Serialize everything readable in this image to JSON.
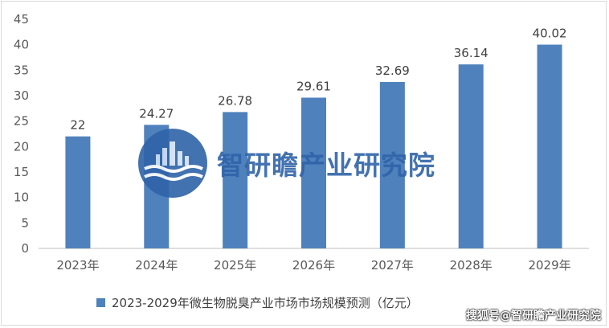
{
  "chart_data": {
    "type": "bar",
    "categories": [
      "2023年",
      "2024年",
      "2025年",
      "2026年",
      "2027年",
      "2028年",
      "2029年"
    ],
    "values": [
      22,
      24.27,
      26.78,
      29.61,
      32.69,
      36.14,
      40.02
    ],
    "data_labels": [
      "22",
      "24.27",
      "26.78",
      "29.61",
      "32.69",
      "36.14",
      "40.02"
    ],
    "yticks": [
      "0",
      "5",
      "10",
      "15",
      "20",
      "25",
      "30",
      "35",
      "40",
      "45"
    ],
    "ylim": [
      0,
      45
    ],
    "series_name": "2023-2029年微生物脱臭产业市场市场规模预测（亿元）",
    "legend_position": "bottom",
    "grid": false,
    "bar_color": "#4f81bd"
  },
  "watermark": {
    "text": "智研瞻产业研究院",
    "color": "#2f63a8"
  },
  "credit": {
    "text": "搜狐号@智研瞻产业研究院"
  }
}
